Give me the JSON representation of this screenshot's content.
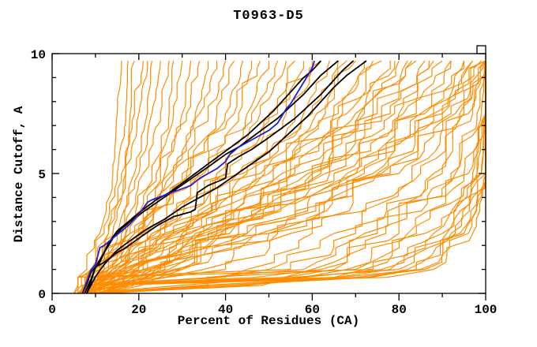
{
  "window": {
    "title": "T0963-D5 distance cutoff plot",
    "background": "#ffffff"
  },
  "chart_data": {
    "type": "line",
    "title": "T0963-D5",
    "xlabel": "Percent of Residues (CA)",
    "ylabel": "Distance Cutoff, A",
    "xlim": [
      0,
      100
    ],
    "ylim": [
      0,
      10
    ],
    "x_major_ticks": [
      0,
      20,
      40,
      60,
      80,
      100
    ],
    "x_minor_ticks": [
      10,
      30,
      50,
      70,
      90
    ],
    "y_major_ticks": [
      0,
      5,
      10
    ],
    "y_minor_ticks": [
      1,
      2,
      3,
      4,
      6,
      7,
      8,
      9
    ],
    "grid": false,
    "legend": "none",
    "curve_top_cutoff": 9.7,
    "colors": {
      "ensemble": "#ff8c00",
      "reference": "#000000",
      "highlight": "#2020d0",
      "frame": "#000000",
      "background": "#ffffff"
    },
    "series": [
      {
        "name": "highlight-model",
        "color": "#2020d0",
        "width": 1.8,
        "points": [
          [
            7,
            0
          ],
          [
            8,
            0.5
          ],
          [
            9,
            1.0
          ],
          [
            10,
            1.2
          ],
          [
            11,
            1.9
          ],
          [
            12,
            2.0
          ],
          [
            14,
            2.3
          ],
          [
            16,
            2.6
          ],
          [
            18,
            2.9
          ],
          [
            20,
            3.3
          ],
          [
            22,
            3.8
          ],
          [
            23,
            3.9
          ],
          [
            26,
            4.1
          ],
          [
            29,
            4.3
          ],
          [
            32,
            4.5
          ],
          [
            34,
            4.8
          ],
          [
            36,
            5.0
          ],
          [
            38,
            5.2
          ],
          [
            40,
            5.5
          ],
          [
            41,
            5.8
          ],
          [
            43,
            6.1
          ],
          [
            45,
            6.3
          ],
          [
            47,
            6.5
          ],
          [
            49,
            6.7
          ],
          [
            50,
            6.8
          ],
          [
            52,
            7.1
          ],
          [
            53,
            7.4
          ],
          [
            54,
            7.7
          ],
          [
            55,
            7.9
          ],
          [
            56,
            8.2
          ],
          [
            57,
            8.5
          ],
          [
            58,
            8.8
          ],
          [
            59,
            9.1
          ],
          [
            60,
            9.4
          ],
          [
            60.5,
            9.7
          ]
        ]
      },
      {
        "name": "reference-model-1",
        "color": "#000000",
        "width": 1.8,
        "points": [
          [
            7,
            0
          ],
          [
            8,
            0.4
          ],
          [
            9,
            0.9
          ],
          [
            10,
            1.1
          ],
          [
            11,
            1.3
          ],
          [
            13,
            2.1
          ],
          [
            15,
            2.6
          ],
          [
            17,
            2.9
          ],
          [
            19,
            3.2
          ],
          [
            21,
            3.5
          ],
          [
            24,
            3.9
          ],
          [
            27,
            4.2
          ],
          [
            30,
            4.6
          ],
          [
            33,
            5.0
          ],
          [
            36,
            5.4
          ],
          [
            39,
            5.8
          ],
          [
            42,
            6.2
          ],
          [
            45,
            6.6
          ],
          [
            48,
            7.1
          ],
          [
            51,
            7.6
          ],
          [
            54,
            8.2
          ],
          [
            56,
            8.6
          ],
          [
            58,
            9.0
          ],
          [
            60,
            9.3
          ],
          [
            62,
            9.7
          ]
        ]
      },
      {
        "name": "reference-model-2",
        "color": "#000000",
        "width": 1.8,
        "points": [
          [
            7.5,
            0
          ],
          [
            9,
            0.6
          ],
          [
            10,
            1.1
          ],
          [
            12,
            1.7
          ],
          [
            14,
            2.3
          ],
          [
            16,
            2.7
          ],
          [
            18,
            3.0
          ],
          [
            21,
            3.4
          ],
          [
            25,
            3.9
          ],
          [
            29,
            4.4
          ],
          [
            33,
            4.9
          ],
          [
            37,
            5.4
          ],
          [
            40,
            5.8
          ],
          [
            43,
            6.1
          ],
          [
            46,
            6.5
          ],
          [
            49,
            6.9
          ],
          [
            52,
            7.3
          ],
          [
            55,
            7.8
          ],
          [
            58,
            8.3
          ],
          [
            60,
            8.7
          ],
          [
            62,
            9.1
          ],
          [
            64,
            9.4
          ],
          [
            66,
            9.7
          ]
        ]
      },
      {
        "name": "reference-model-3",
        "color": "#000000",
        "width": 1.8,
        "points": [
          [
            8,
            0
          ],
          [
            9,
            0.5
          ],
          [
            10,
            1.1
          ],
          [
            12,
            1.3
          ],
          [
            15,
            1.7
          ],
          [
            17,
            1.9
          ],
          [
            20,
            2.3
          ],
          [
            24,
            2.8
          ],
          [
            28,
            3.2
          ],
          [
            32,
            3.4
          ],
          [
            33,
            3.5
          ],
          [
            33.5,
            4.2
          ],
          [
            36,
            4.5
          ],
          [
            40,
            4.8
          ],
          [
            40.5,
            5.4
          ],
          [
            43,
            5.7
          ],
          [
            46,
            6.0
          ],
          [
            50,
            6.5
          ],
          [
            53,
            6.9
          ],
          [
            56,
            7.3
          ],
          [
            59,
            7.8
          ],
          [
            62,
            8.3
          ],
          [
            65,
            8.9
          ],
          [
            67,
            9.3
          ],
          [
            69.5,
            9.7
          ]
        ]
      },
      {
        "name": "reference-model-4",
        "color": "#000000",
        "width": 1.8,
        "points": [
          [
            8,
            0
          ],
          [
            10,
            0.7
          ],
          [
            12,
            1.2
          ],
          [
            15,
            1.8
          ],
          [
            18,
            2.2
          ],
          [
            22,
            2.7
          ],
          [
            26,
            3.1
          ],
          [
            30,
            3.6
          ],
          [
            34,
            4.0
          ],
          [
            38,
            4.4
          ],
          [
            42,
            4.9
          ],
          [
            46,
            5.4
          ],
          [
            50,
            5.9
          ],
          [
            53,
            6.4
          ],
          [
            56,
            6.9
          ],
          [
            59,
            7.4
          ],
          [
            62,
            8.0
          ],
          [
            65,
            8.6
          ],
          [
            68,
            9.1
          ],
          [
            71,
            9.5
          ],
          [
            72.5,
            9.7
          ]
        ]
      }
    ],
    "ensemble_models": {
      "name": "other-models",
      "color": "#ff8c00",
      "width": 1.2,
      "anchor_cutoffs": [
        0,
        1,
        2.5,
        5,
        7.5,
        9.7
      ],
      "x_at_anchor_cutoffs": [
        [
          5,
          8,
          11,
          14,
          15,
          16
        ],
        [
          6,
          9,
          12,
          15,
          17,
          17.5
        ],
        [
          6,
          10,
          14,
          17,
          18,
          19
        ],
        [
          7,
          10,
          13,
          16,
          19,
          21
        ],
        [
          5,
          9,
          13,
          17,
          20,
          22
        ],
        [
          7,
          11,
          15,
          19,
          22,
          23
        ],
        [
          6,
          10,
          15,
          20,
          23,
          25
        ],
        [
          8,
          12,
          16,
          21,
          25,
          27
        ],
        [
          7,
          12,
          17,
          23,
          27,
          28
        ],
        [
          6,
          11,
          17,
          24,
          28,
          30
        ],
        [
          8,
          13,
          19,
          26,
          30,
          32
        ],
        [
          7,
          12,
          18,
          25,
          31,
          34
        ],
        [
          9,
          14,
          21,
          28,
          33,
          36
        ],
        [
          8,
          13,
          20,
          27,
          34,
          38
        ],
        [
          6,
          11,
          18,
          28,
          36,
          40
        ],
        [
          7,
          12,
          19,
          30,
          38,
          42
        ],
        [
          8,
          14,
          21,
          31,
          40,
          44
        ],
        [
          6,
          12,
          20,
          32,
          42,
          46
        ],
        [
          9,
          15,
          23,
          34,
          43,
          48
        ],
        [
          7,
          13,
          22,
          35,
          45,
          50
        ],
        [
          8,
          15,
          24,
          36,
          46,
          52
        ],
        [
          6,
          13,
          23,
          38,
          48,
          54
        ],
        [
          9,
          16,
          26,
          40,
          50,
          56
        ],
        [
          7,
          14,
          25,
          41,
          52,
          58
        ],
        [
          8,
          16,
          27,
          43,
          54,
          60
        ],
        [
          9,
          17,
          28,
          44,
          56,
          62
        ],
        [
          6,
          14,
          26,
          45,
          58,
          64
        ],
        [
          8,
          16,
          29,
          47,
          60,
          66
        ],
        [
          9,
          18,
          30,
          48,
          61,
          68
        ],
        [
          7,
          15,
          28,
          49,
          63,
          70
        ],
        [
          8,
          17,
          31,
          51,
          65,
          72
        ],
        [
          9,
          19,
          33,
          53,
          67,
          74
        ],
        [
          10,
          20,
          34,
          54,
          68,
          76
        ],
        [
          8,
          18,
          32,
          55,
          70,
          78
        ],
        [
          9,
          20,
          35,
          57,
          72,
          80
        ],
        [
          10,
          22,
          37,
          59,
          74,
          82
        ],
        [
          9,
          21,
          36,
          60,
          76,
          84
        ],
        [
          10,
          23,
          39,
          62,
          78,
          86
        ],
        [
          11,
          24,
          40,
          64,
          80,
          88
        ],
        [
          10,
          22,
          38,
          63,
          79,
          90
        ],
        [
          9,
          19,
          31,
          50,
          66,
          79
        ],
        [
          10,
          21,
          35,
          56,
          71,
          83
        ],
        [
          11,
          23,
          38,
          60,
          75,
          87
        ],
        [
          10,
          24,
          41,
          65,
          81,
          92
        ],
        [
          11,
          25,
          43,
          68,
          84,
          95
        ],
        [
          12,
          26,
          45,
          70,
          86,
          97
        ],
        [
          11,
          27,
          47,
          72,
          88,
          99
        ],
        [
          12,
          28,
          48,
          74,
          90,
          100
        ],
        [
          13,
          29,
          50,
          76,
          92,
          100
        ],
        [
          12,
          30,
          52,
          78,
          94,
          100
        ],
        [
          6,
          30,
          45,
          70,
          85,
          92
        ],
        [
          7,
          35,
          50,
          75,
          88,
          95
        ],
        [
          6,
          40,
          55,
          80,
          90,
          97
        ],
        [
          8,
          45,
          60,
          83,
          93,
          100
        ],
        [
          7,
          50,
          65,
          85,
          95,
          100
        ],
        [
          6,
          55,
          70,
          88,
          96,
          100
        ],
        [
          8,
          58,
          72,
          90,
          97,
          100
        ],
        [
          7,
          60,
          75,
          92,
          98,
          100
        ],
        [
          9,
          62,
          77,
          93,
          99,
          100
        ],
        [
          8,
          65,
          80,
          95,
          100,
          100
        ],
        [
          7,
          68,
          82,
          96,
          100,
          100
        ],
        [
          9,
          70,
          84,
          97,
          100,
          100
        ],
        [
          8,
          72,
          86,
          98,
          100,
          100
        ],
        [
          9,
          74,
          88,
          98,
          100,
          100
        ],
        [
          10,
          76,
          90,
          99,
          100,
          100
        ],
        [
          9,
          78,
          91,
          99,
          100,
          100
        ],
        [
          10,
          80,
          92,
          100,
          100,
          100
        ],
        [
          11,
          82,
          93,
          100,
          100,
          100
        ],
        [
          10,
          84,
          94,
          100,
          100,
          100
        ],
        [
          12,
          85,
          95,
          100,
          100,
          100
        ],
        [
          11,
          86,
          96,
          100,
          100,
          100
        ],
        [
          12,
          88,
          97,
          100,
          100,
          100
        ]
      ]
    }
  }
}
